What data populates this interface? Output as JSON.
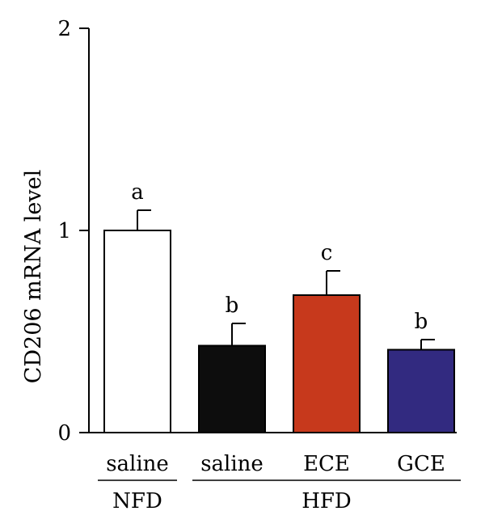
{
  "chart_data": {
    "type": "bar",
    "ylabel": "CD206 mRNA level",
    "ylim": [
      0,
      2
    ],
    "yticks": [
      0,
      1,
      2
    ],
    "grid": false,
    "categories": [
      "saline",
      "saline",
      "ECE",
      "GCE"
    ],
    "groups": [
      {
        "label": "NFD",
        "categories": [
          0
        ]
      },
      {
        "label": "HFD",
        "categories": [
          1,
          2,
          3
        ]
      }
    ],
    "values": [
      1.0,
      0.43,
      0.68,
      0.41
    ],
    "errors": [
      0.1,
      0.11,
      0.12,
      0.05
    ],
    "significance": [
      "a",
      "b",
      "c",
      "b"
    ],
    "colors": [
      "#ffffff",
      "#0d0d0d",
      "#c7391c",
      "#322a80"
    ]
  }
}
